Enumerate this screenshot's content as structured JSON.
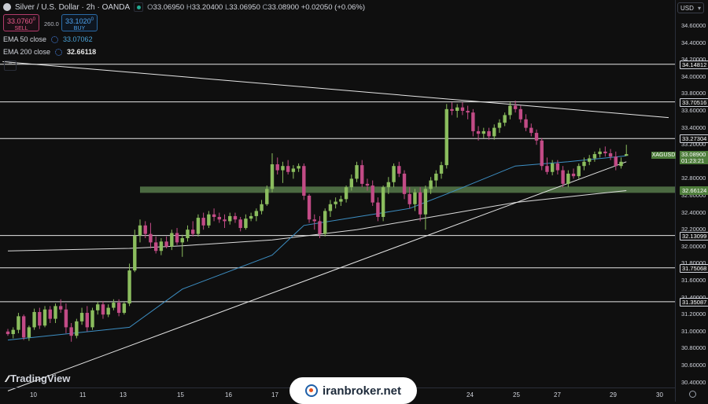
{
  "header": {
    "title": "Silver / U.S. Dollar · 2h · OANDA",
    "ohlc": {
      "open_label": "O",
      "open": "33.06950",
      "high_label": "H",
      "high": "33.20400",
      "low_label": "L",
      "low": "33.06950",
      "close_label": "C",
      "close": "33.08900",
      "change": "+0.02050 (+0.06%)"
    }
  },
  "trade": {
    "sell_price": "33.0760",
    "sell_sup": "0",
    "sell_label": "SELL",
    "spread": "260.0",
    "buy_price": "33.1020",
    "buy_sup": "0",
    "buy_label": "BUY"
  },
  "indicators": [
    {
      "name": "EMA 50 close",
      "value": "33.07062",
      "color": "#4aa3d8"
    },
    {
      "name": "EMA 200 close",
      "value": "32.66118",
      "color": "#e8e8e8"
    }
  ],
  "currency": "USD",
  "price_axis": {
    "ticks": [
      "34.60000",
      "34.40000",
      "34.20000",
      "34.00000",
      "33.80000",
      "33.60000",
      "33.40000",
      "33.20000",
      "32.80000",
      "32.60000",
      "32.40000",
      "32.20000",
      "32.00000",
      "31.80000",
      "31.60000",
      "31.40000",
      "31.20000",
      "31.00000",
      "30.80000",
      "30.60000",
      "30.40000"
    ],
    "levels": [
      "34.14812",
      "33.70516",
      "33.27304",
      "32.66124",
      "32.13099",
      "31.75068",
      "31.35087"
    ],
    "live_price": "33.08900",
    "countdown": "01:23:21",
    "symbol": "XAGUSD"
  },
  "time_axis": [
    "10",
    "11",
    "13",
    "15",
    "16",
    "17",
    "24",
    "25",
    "27",
    "29",
    "30"
  ],
  "branding": {
    "logo": "TradingView",
    "watermark": "iranbroker.net"
  },
  "colors": {
    "up": "#8bbd5e",
    "down": "#c24b86",
    "ema50": "#3d8fc4",
    "ema200": "#dcdcdc",
    "zone": "#6f9a55"
  },
  "chart_data": {
    "type": "candlestick",
    "title": "Silver / U.S. Dollar · 2h · OANDA",
    "ylim": [
      30.35,
      34.75
    ],
    "candles": [
      [
        31.0,
        31.03,
        30.95,
        30.97
      ],
      [
        30.97,
        31.05,
        30.92,
        31.02
      ],
      [
        31.02,
        31.22,
        30.98,
        31.18
      ],
      [
        31.18,
        31.2,
        30.9,
        30.93
      ],
      [
        30.93,
        31.07,
        30.89,
        31.05
      ],
      [
        31.05,
        31.27,
        31.02,
        31.23
      ],
      [
        31.23,
        31.28,
        31.03,
        31.07
      ],
      [
        31.07,
        31.3,
        31.05,
        31.26
      ],
      [
        31.26,
        31.3,
        31.1,
        31.15
      ],
      [
        31.15,
        31.33,
        31.1,
        31.3
      ],
      [
        31.3,
        31.38,
        31.22,
        31.26
      ],
      [
        31.26,
        31.33,
        30.98,
        31.05
      ],
      [
        31.05,
        31.1,
        30.88,
        30.95
      ],
      [
        30.95,
        31.15,
        30.92,
        31.12
      ],
      [
        31.12,
        31.28,
        31.08,
        31.22
      ],
      [
        31.22,
        31.3,
        31.0,
        31.05
      ],
      [
        31.05,
        31.28,
        31.02,
        31.25
      ],
      [
        31.25,
        31.35,
        31.2,
        31.32
      ],
      [
        31.32,
        31.36,
        31.15,
        31.2
      ],
      [
        31.2,
        31.32,
        31.17,
        31.28
      ],
      [
        31.28,
        31.38,
        31.25,
        31.34
      ],
      [
        31.34,
        31.38,
        31.18,
        31.22
      ],
      [
        31.22,
        31.35,
        31.2,
        31.33
      ],
      [
        31.33,
        31.8,
        31.3,
        31.72
      ],
      [
        31.72,
        32.2,
        31.7,
        32.13
      ],
      [
        32.13,
        32.32,
        32.05,
        32.25
      ],
      [
        32.25,
        32.3,
        32.1,
        32.15
      ],
      [
        32.15,
        32.28,
        31.98,
        32.05
      ],
      [
        32.05,
        32.12,
        31.92,
        31.95
      ],
      [
        31.95,
        32.1,
        31.9,
        32.06
      ],
      [
        32.06,
        32.12,
        31.98,
        32.0
      ],
      [
        32.0,
        32.2,
        31.96,
        32.16
      ],
      [
        32.16,
        32.22,
        32.02,
        32.05
      ],
      [
        32.05,
        32.14,
        31.88,
        32.1
      ],
      [
        32.1,
        32.25,
        32.06,
        32.2
      ],
      [
        32.2,
        32.3,
        32.12,
        32.15
      ],
      [
        32.15,
        32.38,
        32.12,
        32.34
      ],
      [
        32.34,
        32.4,
        32.2,
        32.25
      ],
      [
        32.25,
        32.42,
        32.22,
        32.38
      ],
      [
        32.38,
        32.45,
        32.3,
        32.35
      ],
      [
        32.35,
        32.4,
        32.28,
        32.32
      ],
      [
        32.32,
        32.38,
        32.22,
        32.3
      ],
      [
        32.3,
        32.4,
        32.26,
        32.36
      ],
      [
        32.36,
        32.4,
        32.28,
        32.32
      ],
      [
        32.32,
        32.35,
        32.18,
        32.22
      ],
      [
        32.22,
        32.38,
        32.2,
        32.33
      ],
      [
        32.33,
        32.4,
        32.3,
        32.36
      ],
      [
        32.36,
        32.45,
        32.3,
        32.42
      ],
      [
        32.42,
        32.55,
        32.38,
        32.5
      ],
      [
        32.5,
        32.72,
        32.48,
        32.68
      ],
      [
        32.68,
        33.1,
        32.64,
        32.97
      ],
      [
        32.97,
        33.05,
        32.85,
        32.9
      ],
      [
        32.9,
        33.0,
        32.75,
        32.95
      ],
      [
        32.95,
        33.02,
        32.85,
        32.88
      ],
      [
        32.88,
        32.96,
        32.8,
        32.92
      ],
      [
        32.92,
        32.98,
        32.88,
        32.95
      ],
      [
        32.95,
        32.98,
        32.55,
        32.6
      ],
      [
        32.6,
        32.62,
        32.28,
        32.32
      ],
      [
        32.32,
        32.38,
        32.2,
        32.3
      ],
      [
        32.3,
        32.36,
        32.1,
        32.15
      ],
      [
        32.15,
        32.45,
        32.12,
        32.42
      ],
      [
        32.42,
        32.55,
        32.35,
        32.5
      ],
      [
        32.5,
        32.58,
        32.45,
        32.53
      ],
      [
        32.53,
        32.6,
        32.48,
        32.56
      ],
      [
        32.56,
        32.72,
        32.52,
        32.7
      ],
      [
        32.7,
        32.85,
        32.66,
        32.8
      ],
      [
        32.8,
        33.0,
        32.76,
        32.96
      ],
      [
        32.96,
        33.02,
        32.7,
        32.74
      ],
      [
        32.74,
        32.8,
        32.66,
        32.72
      ],
      [
        32.72,
        32.78,
        32.48,
        32.52
      ],
      [
        32.52,
        32.58,
        32.3,
        32.35
      ],
      [
        32.35,
        32.72,
        32.3,
        32.7
      ],
      [
        32.7,
        32.82,
        32.62,
        32.76
      ],
      [
        32.76,
        32.98,
        32.7,
        32.95
      ],
      [
        32.95,
        33.0,
        32.82,
        32.86
      ],
      [
        32.86,
        32.9,
        32.56,
        32.62
      ],
      [
        32.62,
        32.7,
        32.45,
        32.5
      ],
      [
        32.5,
        32.68,
        32.42,
        32.64
      ],
      [
        32.64,
        32.7,
        32.3,
        32.38
      ],
      [
        32.38,
        32.72,
        32.2,
        32.68
      ],
      [
        32.68,
        32.82,
        32.62,
        32.78
      ],
      [
        32.78,
        32.9,
        32.7,
        32.86
      ],
      [
        32.86,
        33.0,
        32.8,
        32.96
      ],
      [
        32.96,
        33.68,
        32.92,
        33.62
      ],
      [
        33.62,
        33.7,
        33.55,
        33.6
      ],
      [
        33.6,
        33.68,
        33.52,
        33.64
      ],
      [
        33.64,
        33.7,
        33.55,
        33.6
      ],
      [
        33.6,
        33.66,
        33.5,
        33.58
      ],
      [
        33.58,
        33.62,
        33.3,
        33.36
      ],
      [
        33.36,
        33.42,
        33.25,
        33.33
      ],
      [
        33.33,
        33.4,
        33.28,
        33.36
      ],
      [
        33.36,
        33.4,
        33.26,
        33.3
      ],
      [
        33.3,
        33.44,
        33.26,
        33.4
      ],
      [
        33.4,
        33.5,
        33.34,
        33.46
      ],
      [
        33.46,
        33.58,
        33.42,
        33.55
      ],
      [
        33.55,
        33.7,
        33.5,
        33.66
      ],
      [
        33.66,
        33.72,
        33.58,
        33.62
      ],
      [
        33.62,
        33.66,
        33.46,
        33.5
      ],
      [
        33.5,
        33.56,
        33.36,
        33.4
      ],
      [
        33.4,
        33.45,
        33.3,
        33.34
      ],
      [
        33.34,
        33.38,
        33.2,
        33.25
      ],
      [
        33.25,
        33.28,
        32.9,
        32.95
      ],
      [
        32.95,
        33.05,
        32.85,
        32.88
      ],
      [
        32.88,
        33.02,
        32.84,
        32.98
      ],
      [
        32.98,
        33.02,
        32.85,
        32.9
      ],
      [
        32.9,
        32.95,
        32.7,
        32.74
      ],
      [
        32.74,
        32.9,
        32.7,
        32.86
      ],
      [
        32.86,
        32.92,
        32.8,
        32.83
      ],
      [
        32.83,
        32.98,
        32.8,
        32.95
      ],
      [
        32.95,
        33.05,
        32.9,
        33.0
      ],
      [
        33.0,
        33.08,
        32.96,
        33.04
      ],
      [
        33.04,
        33.12,
        33.0,
        33.09
      ],
      [
        33.09,
        33.16,
        33.05,
        33.12
      ],
      [
        33.12,
        33.18,
        33.06,
        33.1
      ],
      [
        33.1,
        33.15,
        33.02,
        33.06
      ],
      [
        33.06,
        33.12,
        32.9,
        32.95
      ],
      [
        32.95,
        33.05,
        32.92,
        33.0
      ],
      [
        33.07,
        33.2,
        33.07,
        33.09
      ]
    ],
    "ema50": [
      [
        0,
        30.9
      ],
      [
        23,
        31.05
      ],
      [
        33,
        31.5
      ],
      [
        50,
        31.9
      ],
      [
        56,
        32.25
      ],
      [
        66,
        32.35
      ],
      [
        76,
        32.45
      ],
      [
        83,
        32.62
      ],
      [
        96,
        32.95
      ],
      [
        106,
        33.0
      ],
      [
        117,
        33.07
      ]
    ],
    "ema200": [
      [
        0,
        31.95
      ],
      [
        23,
        31.98
      ],
      [
        33,
        32.01
      ],
      [
        50,
        32.08
      ],
      [
        66,
        32.2
      ],
      [
        83,
        32.38
      ],
      [
        96,
        32.52
      ],
      [
        117,
        32.66
      ]
    ],
    "trendlines": [
      {
        "name": "descending",
        "points": [
          [
            -1,
            34.18
          ],
          [
            125,
            33.52
          ]
        ]
      },
      {
        "name": "ascending",
        "points": [
          [
            0,
            30.3
          ],
          [
            117,
            33.0
          ]
        ]
      }
    ],
    "support_zone": [
      32.62,
      32.68
    ],
    "horizontal_levels": [
      34.14812,
      33.70516,
      33.27304,
      32.13099,
      31.75068,
      31.35087
    ]
  }
}
